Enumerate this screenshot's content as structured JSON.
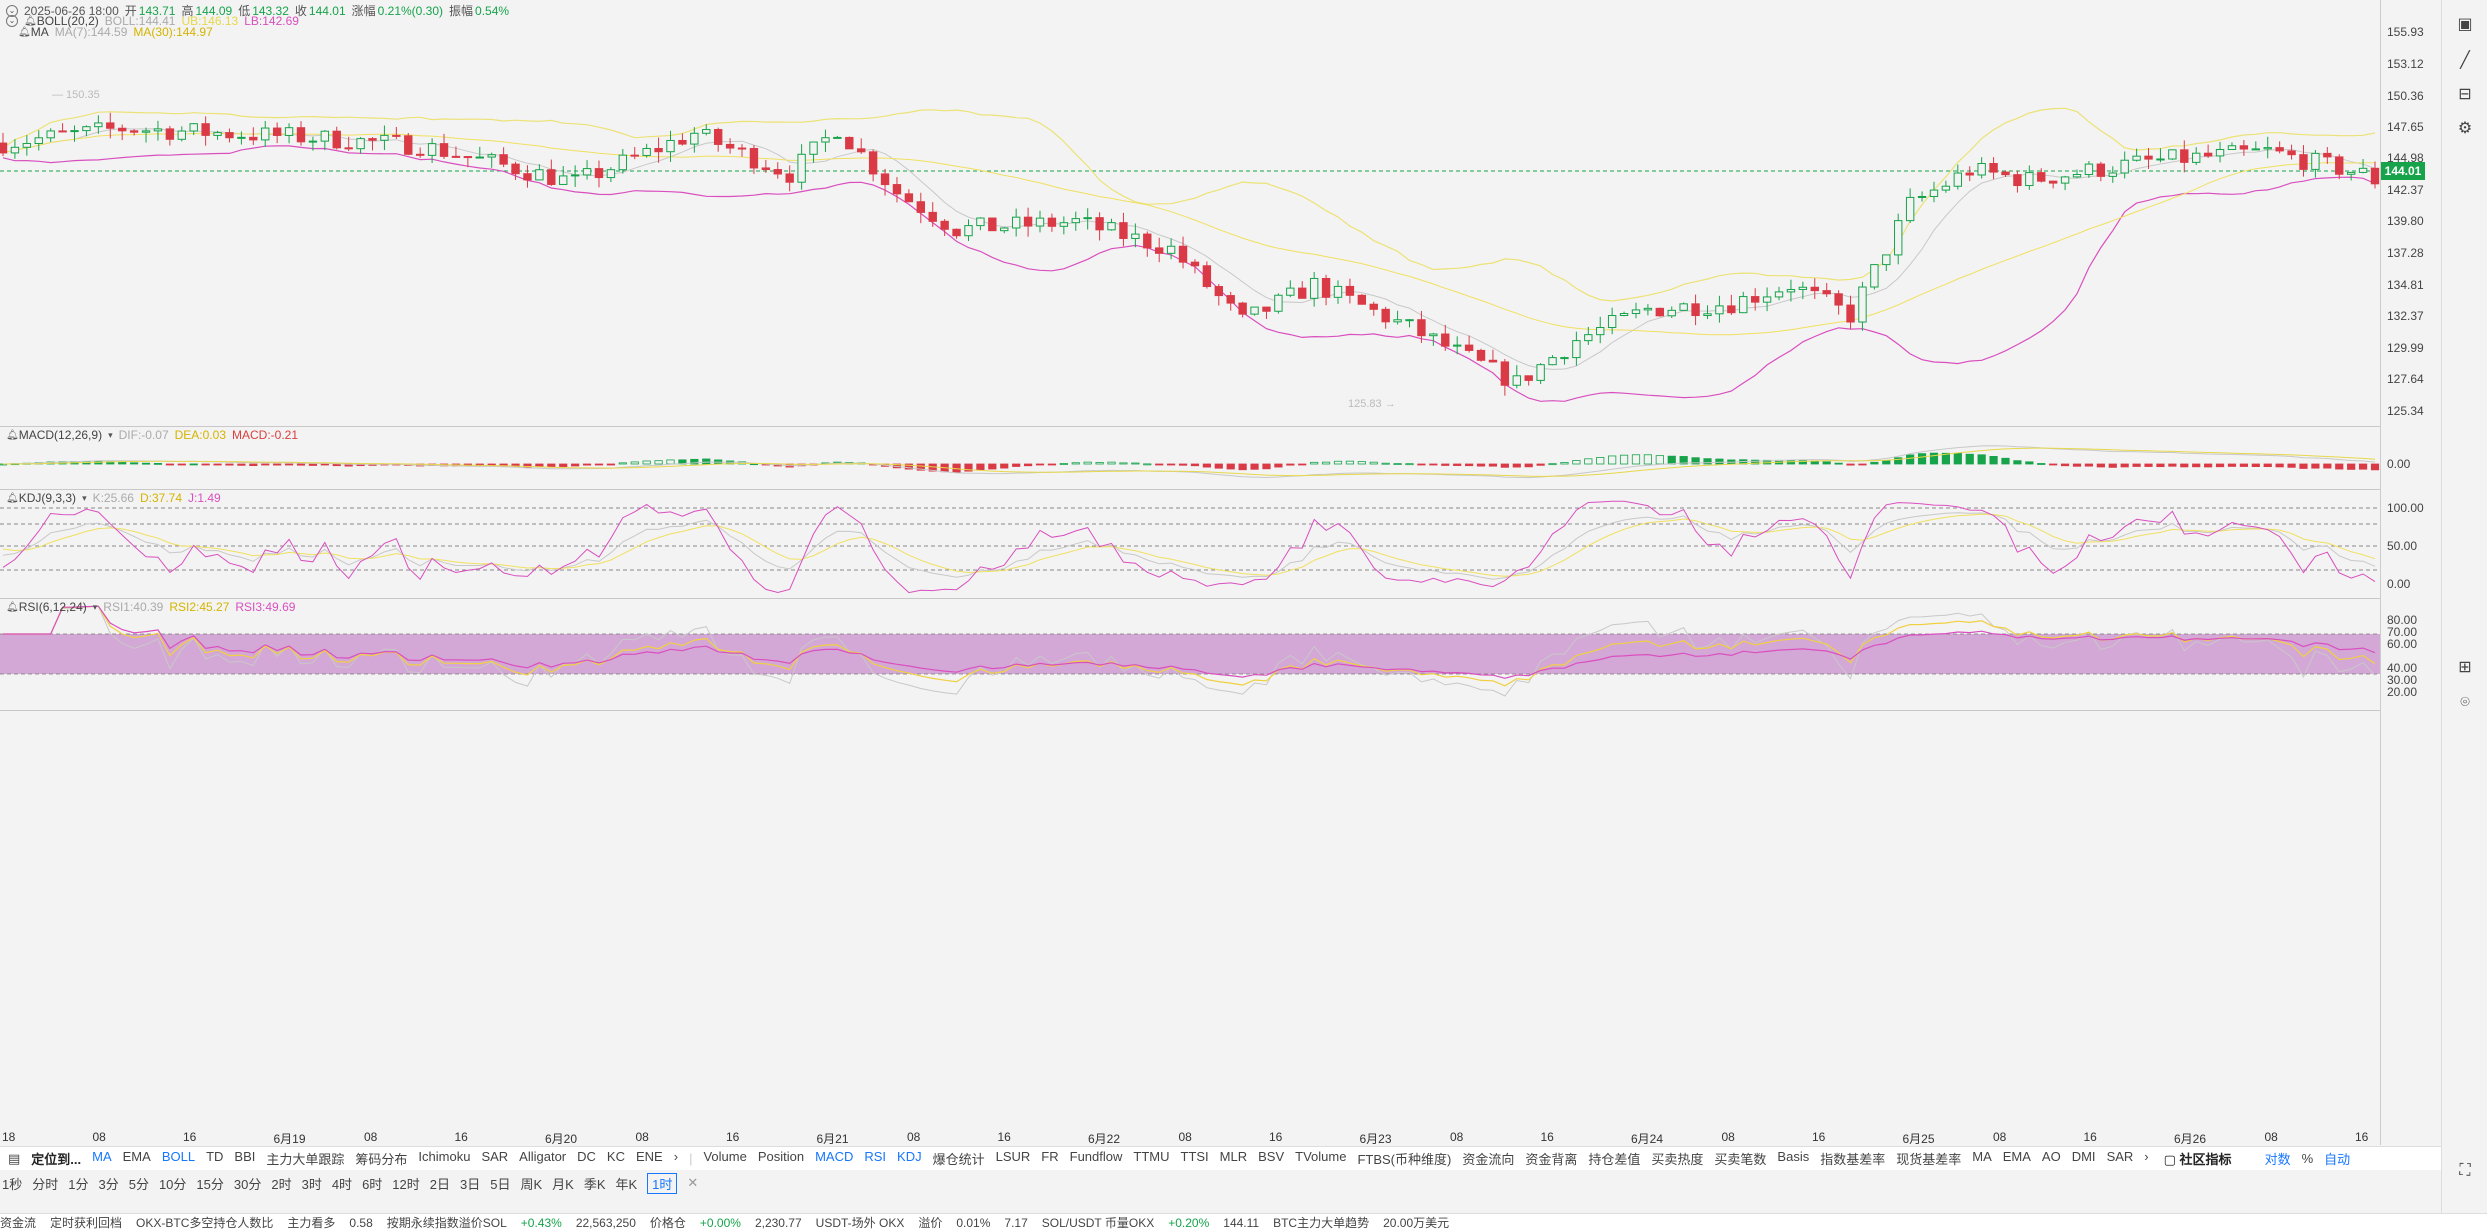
{
  "header": {
    "date": "2025-06-26 18:00",
    "open_label": "开",
    "open": "143.71",
    "high_label": "高",
    "high": "144.09",
    "low_label": "低",
    "low": "143.32",
    "close_label": "收",
    "close": "144.01",
    "change_label": "涨幅",
    "change": "0.21%(0.30)",
    "amp_label": "振幅",
    "amp": "0.54%"
  },
  "boll_legend": {
    "name": "BOLL(20,2)",
    "boll": "BOLL:144.41",
    "ub": "UB:146.13",
    "lb": "LB:142.69"
  },
  "ma_legend": {
    "name": "MA",
    "ma7": "MA(7):144.59",
    "ma30": "MA(30):144.97"
  },
  "macd_legend": {
    "name": "MACD(12,26,9)",
    "dif": "DIF:-0.07",
    "dea": "DEA:0.03",
    "macd": "MACD:-0.21"
  },
  "kdj_legend": {
    "name": "KDJ(9,3,3)",
    "k": "K:25.66",
    "d": "D:37.74",
    "j": "J:1.49"
  },
  "rsi_legend": {
    "name": "RSI(6,12,24)",
    "rsi1": "RSI1:40.39",
    "rsi2": "RSI2:45.27",
    "rsi3": "RSI3:49.69"
  },
  "price_axis": [
    "155.93",
    "153.12",
    "150.36",
    "147.65",
    "144.98",
    "142.37",
    "139.80",
    "137.28",
    "134.81",
    "132.37",
    "129.99",
    "127.64",
    "125.34"
  ],
  "last_price": "144.01",
  "high_mark": "150.35",
  "low_mark": "125.83",
  "macd_axis": [
    "0.00"
  ],
  "kdj_axis": [
    "100.00",
    "50.00",
    "0.00"
  ],
  "rsi_axis": [
    "80.00",
    "70.00",
    "60.00",
    "40.00",
    "30.00",
    "20.00"
  ],
  "xaxis_labels": [
    "18",
    "08",
    "16",
    "6月19",
    "08",
    "16",
    "6月20",
    "08",
    "16",
    "6月21",
    "08",
    "16",
    "6月22",
    "08",
    "16",
    "6月23",
    "08",
    "16",
    "6月24",
    "08",
    "16",
    "6月25",
    "08",
    "16",
    "6月26",
    "08",
    "16"
  ],
  "indicator_bar": {
    "locate": "定位到...",
    "main": [
      {
        "t": "MA",
        "on": true
      },
      {
        "t": "EMA",
        "on": false
      },
      {
        "t": "BOLL",
        "on": true
      },
      {
        "t": "TD",
        "on": false
      },
      {
        "t": "BBI",
        "on": false
      },
      {
        "t": "主力大单跟踪",
        "on": false
      },
      {
        "t": "筹码分布",
        "on": false
      },
      {
        "t": "Ichimoku",
        "on": false
      },
      {
        "t": "SAR",
        "on": false
      },
      {
        "t": "Alligator",
        "on": false
      },
      {
        "t": "DC",
        "on": false
      },
      {
        "t": "KC",
        "on": false
      },
      {
        "t": "ENE",
        "on": false
      },
      {
        "t": "›",
        "on": false
      }
    ],
    "sub": [
      {
        "t": "Volume",
        "on": false
      },
      {
        "t": "Position",
        "on": false
      },
      {
        "t": "MACD",
        "on": true
      },
      {
        "t": "RSI",
        "on": true
      },
      {
        "t": "KDJ",
        "on": true
      },
      {
        "t": "爆仓统计",
        "on": false
      },
      {
        "t": "LSUR",
        "on": false
      },
      {
        "t": "FR",
        "on": false
      },
      {
        "t": "Fundflow",
        "on": false
      },
      {
        "t": "TTMU",
        "on": false
      },
      {
        "t": "TTSI",
        "on": false
      },
      {
        "t": "MLR",
        "on": false
      },
      {
        "t": "BSV",
        "on": false
      },
      {
        "t": "TVolume",
        "on": false
      },
      {
        "t": "FTBS(币种维度)",
        "on": false
      },
      {
        "t": "资金流向",
        "on": false
      },
      {
        "t": "资金背离",
        "on": false
      },
      {
        "t": "持仓差值",
        "on": false
      },
      {
        "t": "买卖热度",
        "on": false
      },
      {
        "t": "买卖笔数",
        "on": false
      },
      {
        "t": "Basis",
        "on": false
      },
      {
        "t": "指数基差率",
        "on": false
      },
      {
        "t": "现货基差率",
        "on": false
      },
      {
        "t": "MA",
        "on": false
      },
      {
        "t": "EMA",
        "on": false
      },
      {
        "t": "AO",
        "on": false
      },
      {
        "t": "DMI",
        "on": false
      },
      {
        "t": "SAR",
        "on": false
      },
      {
        "t": "›",
        "on": false
      }
    ],
    "community": "社区指标",
    "log": "对数",
    "percent": "%",
    "auto": "自动"
  },
  "timeframes": [
    "1秒",
    "分时",
    "1分",
    "3分",
    "5分",
    "10分",
    "15分",
    "30分",
    "2时",
    "3时",
    "4时",
    "6时",
    "12时",
    "2日",
    "3日",
    "5日",
    "周K",
    "月K",
    "季K",
    "年K",
    "1时"
  ],
  "selected_timeframe": "1时",
  "ticker": [
    "资金流",
    "定时获利回档",
    "OKX-BTC多空持仓人数比",
    "主力看多",
    "0.58",
    "按期永续指数溢价SOL",
    "+0.43%",
    "22,563,250",
    "价格仓",
    "+0.00%",
    "2,230.77",
    "USDT-场外 OKX",
    "溢价",
    "0.01%",
    "7.17",
    "SOL/USDT 币量OKX",
    "+0.20%",
    "144.11",
    "BTC主力大单趋势",
    "20.00万美元"
  ]
}
